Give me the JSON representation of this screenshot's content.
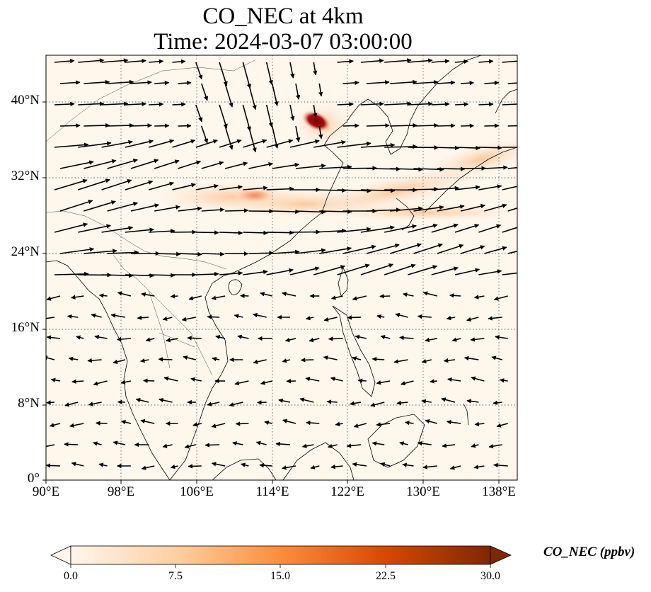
{
  "title": {
    "line1": "CO_NEC at 4km",
    "line2": "Time: 2024-03-07 03:00:00"
  },
  "map": {
    "lon_range": [
      90,
      140
    ],
    "lat_range": [
      0,
      45
    ],
    "x_ticks": [
      "90°E",
      "98°E",
      "106°E",
      "114°E",
      "122°E",
      "130°E",
      "138°E"
    ],
    "y_ticks": [
      "0°",
      "8°N",
      "16°N",
      "24°N",
      "32°N",
      "40°N"
    ],
    "gridlines": true,
    "field": "CO_NEC concentration shaded with wind vectors",
    "plumes": [
      {
        "lon": 118.5,
        "lat": 38.2,
        "value": 30
      },
      {
        "lon": 111.5,
        "lat": 30.0,
        "value": 14
      },
      {
        "lon": 128,
        "lat": 33.0,
        "value": 6
      },
      {
        "lon": 120,
        "lat": 29.0,
        "value": 6
      }
    ]
  },
  "colorbar": {
    "label": "CO_NEC (ppbv)",
    "min": 0,
    "max": 30,
    "ticks": [
      "0.0",
      "7.5",
      "15.0",
      "22.5",
      "30.0"
    ],
    "colors": [
      "#fff5eb",
      "#fdd0a2",
      "#fd8d3c",
      "#d94801",
      "#7f2704"
    ]
  }
}
